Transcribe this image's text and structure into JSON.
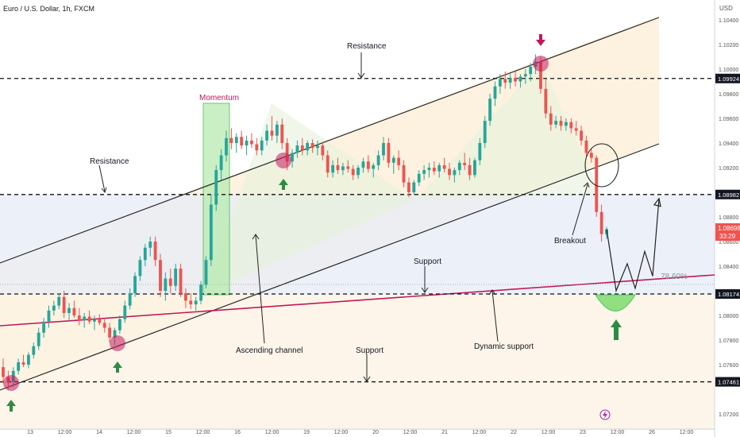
{
  "header": {
    "title": "Euro / U.S. Dollar, 1h, FXCM",
    "currency": "USD"
  },
  "chart_data": {
    "type": "candlestick",
    "ylim": [
      1.0712,
      1.1054
    ],
    "price_ticks": [
      "1.10400",
      "1.10200",
      "1.10000",
      "1.09800",
      "1.09600",
      "1.09400",
      "1.09200",
      "1.08800",
      "1.08600",
      "1.08400",
      "1.08000",
      "1.07800",
      "1.07600",
      "1.07200"
    ],
    "time_ticks": [
      "13",
      "12:00",
      "14",
      "12:00",
      "15",
      "12:00",
      "16",
      "12:00",
      "19",
      "12:00",
      "20",
      "12:00",
      "21",
      "12:00",
      "22",
      "12:00",
      "23",
      "12:00",
      "26",
      "12:00"
    ],
    "levels": [
      {
        "price": 1.09924,
        "label": "1.09924"
      },
      {
        "price": 1.08982,
        "label": "1.08982"
      },
      {
        "price": 1.08174,
        "label": "1.08174"
      },
      {
        "price": 1.07461,
        "label": "1.07461"
      }
    ],
    "current_price": {
      "label": "1.08698",
      "countdown": "33:29",
      "price": 1.08698
    },
    "fib_label": "78.60%",
    "annotations": {
      "resistance_top": "Resistance",
      "resistance_left": "Resistance",
      "momentum": "Momentum",
      "support_mid": "Support",
      "support_bottom": "Support",
      "ascending_channel": "Ascending channel",
      "dynamic_support": "Dynamic support",
      "breakout": "Breakout"
    },
    "candles": [
      {
        "o": 1.0758,
        "h": 1.0765,
        "l": 1.0745,
        "c": 1.075
      },
      {
        "o": 1.075,
        "h": 1.0755,
        "l": 1.074,
        "c": 1.0746
      },
      {
        "o": 1.0746,
        "h": 1.0758,
        "l": 1.0742,
        "c": 1.0755
      },
      {
        "o": 1.0755,
        "h": 1.0765,
        "l": 1.0752,
        "c": 1.0762
      },
      {
        "o": 1.0762,
        "h": 1.0768,
        "l": 1.0758,
        "c": 1.076
      },
      {
        "o": 1.076,
        "h": 1.077,
        "l": 1.0757,
        "c": 1.0768
      },
      {
        "o": 1.0768,
        "h": 1.0778,
        "l": 1.0765,
        "c": 1.0775
      },
      {
        "o": 1.0775,
        "h": 1.079,
        "l": 1.0772,
        "c": 1.0786
      },
      {
        "o": 1.0786,
        "h": 1.0798,
        "l": 1.0782,
        "c": 1.0795
      },
      {
        "o": 1.0795,
        "h": 1.0808,
        "l": 1.079,
        "c": 1.0804
      },
      {
        "o": 1.0804,
        "h": 1.0812,
        "l": 1.08,
        "c": 1.0808
      },
      {
        "o": 1.0808,
        "h": 1.0818,
        "l": 1.0805,
        "c": 1.0815
      },
      {
        "o": 1.0815,
        "h": 1.082,
        "l": 1.0798,
        "c": 1.0802
      },
      {
        "o": 1.0802,
        "h": 1.081,
        "l": 1.0795,
        "c": 1.0806
      },
      {
        "o": 1.0806,
        "h": 1.0812,
        "l": 1.0798,
        "c": 1.08
      },
      {
        "o": 1.08,
        "h": 1.0806,
        "l": 1.0792,
        "c": 1.0796
      },
      {
        "o": 1.0796,
        "h": 1.0802,
        "l": 1.079,
        "c": 1.0799
      },
      {
        "o": 1.0799,
        "h": 1.0804,
        "l": 1.0793,
        "c": 1.0795
      },
      {
        "o": 1.0795,
        "h": 1.08,
        "l": 1.0788,
        "c": 1.0797
      },
      {
        "o": 1.0797,
        "h": 1.0801,
        "l": 1.0792,
        "c": 1.0794
      },
      {
        "o": 1.0794,
        "h": 1.0798,
        "l": 1.0786,
        "c": 1.079
      },
      {
        "o": 1.079,
        "h": 1.0794,
        "l": 1.0778,
        "c": 1.0782
      },
      {
        "o": 1.0782,
        "h": 1.079,
        "l": 1.0776,
        "c": 1.0788
      },
      {
        "o": 1.0788,
        "h": 1.08,
        "l": 1.0785,
        "c": 1.0797
      },
      {
        "o": 1.0797,
        "h": 1.0812,
        "l": 1.0794,
        "c": 1.0808
      },
      {
        "o": 1.0808,
        "h": 1.0822,
        "l": 1.0805,
        "c": 1.0818
      },
      {
        "o": 1.0818,
        "h": 1.0835,
        "l": 1.0815,
        "c": 1.0832
      },
      {
        "o": 1.0832,
        "h": 1.0848,
        "l": 1.0828,
        "c": 1.0845
      },
      {
        "o": 1.0845,
        "h": 1.0858,
        "l": 1.084,
        "c": 1.0855
      },
      {
        "o": 1.0855,
        "h": 1.0864,
        "l": 1.0848,
        "c": 1.086
      },
      {
        "o": 1.086,
        "h": 1.0864,
        "l": 1.084,
        "c": 1.0845
      },
      {
        "o": 1.0845,
        "h": 1.085,
        "l": 1.0815,
        "c": 1.082
      },
      {
        "o": 1.082,
        "h": 1.0835,
        "l": 1.0812,
        "c": 1.083
      },
      {
        "o": 1.083,
        "h": 1.0838,
        "l": 1.0818,
        "c": 1.0824
      },
      {
        "o": 1.0824,
        "h": 1.0842,
        "l": 1.082,
        "c": 1.0838
      },
      {
        "o": 1.0838,
        "h": 1.0842,
        "l": 1.0815,
        "c": 1.0818
      },
      {
        "o": 1.0818,
        "h": 1.0822,
        "l": 1.0806,
        "c": 1.0812
      },
      {
        "o": 1.0812,
        "h": 1.0818,
        "l": 1.0805,
        "c": 1.0809
      },
      {
        "o": 1.0809,
        "h": 1.0815,
        "l": 1.0804,
        "c": 1.0812
      },
      {
        "o": 1.0812,
        "h": 1.0828,
        "l": 1.0809,
        "c": 1.0825
      },
      {
        "o": 1.0825,
        "h": 1.0848,
        "l": 1.0822,
        "c": 1.0845
      },
      {
        "o": 1.0845,
        "h": 1.0898,
        "l": 1.084,
        "c": 1.089
      },
      {
        "o": 1.089,
        "h": 1.0922,
        "l": 1.0885,
        "c": 1.0918
      },
      {
        "o": 1.0918,
        "h": 1.0935,
        "l": 1.091,
        "c": 1.093
      },
      {
        "o": 1.093,
        "h": 1.095,
        "l": 1.0925,
        "c": 1.0944
      },
      {
        "o": 1.0944,
        "h": 1.0952,
        "l": 1.0935,
        "c": 1.094
      },
      {
        "o": 1.094,
        "h": 1.0948,
        "l": 1.0932,
        "c": 1.0945
      },
      {
        "o": 1.0945,
        "h": 1.095,
        "l": 1.0935,
        "c": 1.0938
      },
      {
        "o": 1.0938,
        "h": 1.0946,
        "l": 1.093,
        "c": 1.0942
      },
      {
        "o": 1.0942,
        "h": 1.0948,
        "l": 1.0936,
        "c": 1.0939
      },
      {
        "o": 1.0939,
        "h": 1.0944,
        "l": 1.093,
        "c": 1.0934
      },
      {
        "o": 1.0934,
        "h": 1.0945,
        "l": 1.093,
        "c": 1.0942
      },
      {
        "o": 1.0942,
        "h": 1.0955,
        "l": 1.0938,
        "c": 1.095
      },
      {
        "o": 1.095,
        "h": 1.0962,
        "l": 1.0942,
        "c": 1.0946
      },
      {
        "o": 1.0946,
        "h": 1.0958,
        "l": 1.094,
        "c": 1.0955
      },
      {
        "o": 1.0955,
        "h": 1.096,
        "l": 1.0935,
        "c": 1.094
      },
      {
        "o": 1.094,
        "h": 1.0944,
        "l": 1.0918,
        "c": 1.0925
      },
      {
        "o": 1.0925,
        "h": 1.0935,
        "l": 1.092,
        "c": 1.0932
      },
      {
        "o": 1.0932,
        "h": 1.0942,
        "l": 1.0928,
        "c": 1.0938
      },
      {
        "o": 1.0938,
        "h": 1.0944,
        "l": 1.093,
        "c": 1.0934
      },
      {
        "o": 1.0934,
        "h": 1.0942,
        "l": 1.093,
        "c": 1.094
      },
      {
        "o": 1.094,
        "h": 1.0943,
        "l": 1.0932,
        "c": 1.0936
      },
      {
        "o": 1.0936,
        "h": 1.0942,
        "l": 1.093,
        "c": 1.0938
      },
      {
        "o": 1.0938,
        "h": 1.0941,
        "l": 1.0926,
        "c": 1.093
      },
      {
        "o": 1.093,
        "h": 1.0934,
        "l": 1.0912,
        "c": 1.0916
      },
      {
        "o": 1.0916,
        "h": 1.0926,
        "l": 1.0912,
        "c": 1.0922
      },
      {
        "o": 1.0922,
        "h": 1.0928,
        "l": 1.0915,
        "c": 1.0918
      },
      {
        "o": 1.0918,
        "h": 1.0924,
        "l": 1.0914,
        "c": 1.0921
      },
      {
        "o": 1.0921,
        "h": 1.0926,
        "l": 1.0916,
        "c": 1.0919
      },
      {
        "o": 1.0919,
        "h": 1.0922,
        "l": 1.091,
        "c": 1.0914
      },
      {
        "o": 1.0914,
        "h": 1.0922,
        "l": 1.0911,
        "c": 1.092
      },
      {
        "o": 1.092,
        "h": 1.0928,
        "l": 1.0916,
        "c": 1.0925
      },
      {
        "o": 1.0925,
        "h": 1.093,
        "l": 1.0916,
        "c": 1.0919
      },
      {
        "o": 1.0919,
        "h": 1.0924,
        "l": 1.0912,
        "c": 1.0922
      },
      {
        "o": 1.0922,
        "h": 1.0934,
        "l": 1.0918,
        "c": 1.093
      },
      {
        "o": 1.093,
        "h": 1.0945,
        "l": 1.0926,
        "c": 1.094
      },
      {
        "o": 1.094,
        "h": 1.0944,
        "l": 1.092,
        "c": 1.0924
      },
      {
        "o": 1.0924,
        "h": 1.093,
        "l": 1.0915,
        "c": 1.0928
      },
      {
        "o": 1.0928,
        "h": 1.0934,
        "l": 1.0918,
        "c": 1.0922
      },
      {
        "o": 1.0922,
        "h": 1.0926,
        "l": 1.0904,
        "c": 1.0908
      },
      {
        "o": 1.0908,
        "h": 1.0912,
        "l": 1.0896,
        "c": 1.09
      },
      {
        "o": 1.09,
        "h": 1.091,
        "l": 1.0898,
        "c": 1.0908
      },
      {
        "o": 1.0908,
        "h": 1.0918,
        "l": 1.0905,
        "c": 1.0915
      },
      {
        "o": 1.0915,
        "h": 1.0922,
        "l": 1.091,
        "c": 1.0918
      },
      {
        "o": 1.0918,
        "h": 1.0924,
        "l": 1.0912,
        "c": 1.092
      },
      {
        "o": 1.092,
        "h": 1.0925,
        "l": 1.0914,
        "c": 1.0917
      },
      {
        "o": 1.0917,
        "h": 1.0924,
        "l": 1.0912,
        "c": 1.0922
      },
      {
        "o": 1.0922,
        "h": 1.0928,
        "l": 1.0916,
        "c": 1.0919
      },
      {
        "o": 1.0919,
        "h": 1.0924,
        "l": 1.091,
        "c": 1.0914
      },
      {
        "o": 1.0914,
        "h": 1.092,
        "l": 1.0908,
        "c": 1.0918
      },
      {
        "o": 1.0918,
        "h": 1.0926,
        "l": 1.0914,
        "c": 1.0924
      },
      {
        "o": 1.0924,
        "h": 1.0932,
        "l": 1.0918,
        "c": 1.0922
      },
      {
        "o": 1.0922,
        "h": 1.0928,
        "l": 1.091,
        "c": 1.0914
      },
      {
        "o": 1.0914,
        "h": 1.0928,
        "l": 1.0912,
        "c": 1.0926
      },
      {
        "o": 1.0926,
        "h": 1.0944,
        "l": 1.0922,
        "c": 1.094
      },
      {
        "o": 1.094,
        "h": 1.0962,
        "l": 1.0936,
        "c": 1.0958
      },
      {
        "o": 1.0958,
        "h": 1.098,
        "l": 1.0954,
        "c": 1.0976
      },
      {
        "o": 1.0976,
        "h": 1.099,
        "l": 1.097,
        "c": 1.0986
      },
      {
        "o": 1.0986,
        "h": 1.0996,
        "l": 1.098,
        "c": 1.0992
      },
      {
        "o": 1.0992,
        "h": 1.0998,
        "l": 1.0984,
        "c": 1.0989
      },
      {
        "o": 1.0989,
        "h": 1.0996,
        "l": 1.0984,
        "c": 1.0993
      },
      {
        "o": 1.0993,
        "h": 1.0998,
        "l": 1.0986,
        "c": 1.099
      },
      {
        "o": 1.099,
        "h": 1.0996,
        "l": 1.0985,
        "c": 1.0994
      },
      {
        "o": 1.0994,
        "h": 1.1,
        "l": 1.0988,
        "c": 1.0996
      },
      {
        "o": 1.0996,
        "h": 1.1005,
        "l": 1.099,
        "c": 1.1002
      },
      {
        "o": 1.1002,
        "h": 1.1012,
        "l": 1.0996,
        "c": 1.1006
      },
      {
        "o": 1.1006,
        "h": 1.101,
        "l": 1.098,
        "c": 1.0984
      },
      {
        "o": 1.0984,
        "h": 1.0992,
        "l": 1.096,
        "c": 1.0964
      },
      {
        "o": 1.0964,
        "h": 1.097,
        "l": 1.095,
        "c": 1.0955
      },
      {
        "o": 1.0955,
        "h": 1.0962,
        "l": 1.0952,
        "c": 1.0958
      },
      {
        "o": 1.0958,
        "h": 1.0962,
        "l": 1.095,
        "c": 1.0954
      },
      {
        "o": 1.0954,
        "h": 1.096,
        "l": 1.095,
        "c": 1.0957
      },
      {
        "o": 1.0957,
        "h": 1.096,
        "l": 1.0948,
        "c": 1.0952
      },
      {
        "o": 1.0952,
        "h": 1.0958,
        "l": 1.0946,
        "c": 1.095
      },
      {
        "o": 1.095,
        "h": 1.0954,
        "l": 1.0938,
        "c": 1.0942
      },
      {
        "o": 1.0942,
        "h": 1.0946,
        "l": 1.0928,
        "c": 1.0932
      },
      {
        "o": 1.0932,
        "h": 1.0936,
        "l": 1.0924,
        "c": 1.0928
      },
      {
        "o": 1.0928,
        "h": 1.093,
        "l": 1.088,
        "c": 1.0884
      },
      {
        "o": 1.0884,
        "h": 1.089,
        "l": 1.086,
        "c": 1.0866
      },
      {
        "o": 1.0866,
        "h": 1.0872,
        "l": 1.0862,
        "c": 1.087
      }
    ],
    "projection": [
      1.087,
      1.082,
      1.0842,
      1.0822,
      1.0852,
      1.0832,
      1.0895
    ]
  },
  "colors": {
    "bull": "#26a69a",
    "bear": "#ef5350",
    "up_arrow": "#2e8b45",
    "down_arrow": "#c2185b",
    "dynamic_support": "#c2185b",
    "marker": "#c2185b"
  }
}
